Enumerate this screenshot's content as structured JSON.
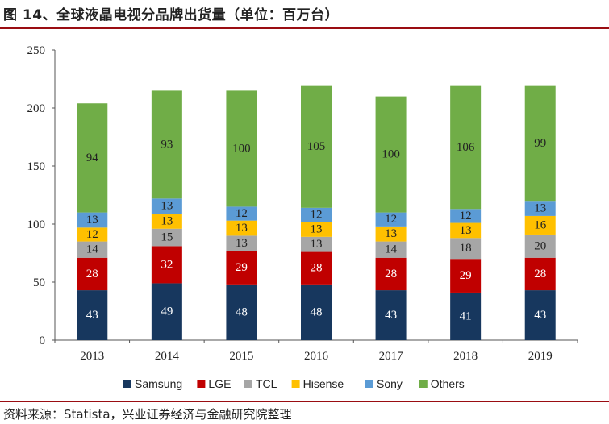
{
  "figure": {
    "title": "图 14、全球液晶电视分品牌出货量（单位：百万台）",
    "source": "资料来源：Statista，兴业证券经济与金融研究院整理"
  },
  "chart_data": {
    "type": "bar",
    "stacked": true,
    "title": "",
    "xlabel": "",
    "ylabel": "",
    "categories": [
      "2013",
      "2014",
      "2015",
      "2016",
      "2017",
      "2018",
      "2019"
    ],
    "ylim": [
      0,
      250
    ],
    "yticks": [
      0,
      50,
      100,
      150,
      200,
      250
    ],
    "legend_position": "bottom",
    "series": [
      {
        "name": "Samsung",
        "color": "#17375e",
        "label_color": "#ffffff",
        "values": [
          43,
          49,
          48,
          48,
          43,
          41,
          43
        ]
      },
      {
        "name": "LGE",
        "color": "#c00000",
        "label_color": "#ffffff",
        "values": [
          28,
          32,
          29,
          28,
          28,
          29,
          28
        ]
      },
      {
        "name": "TCL",
        "color": "#a6a6a6",
        "label_color": "#222222",
        "values": [
          14,
          15,
          13,
          13,
          14,
          18,
          20
        ]
      },
      {
        "name": "Hisense",
        "color": "#ffc000",
        "label_color": "#222222",
        "values": [
          12,
          13,
          13,
          13,
          13,
          13,
          16
        ]
      },
      {
        "name": "Sony",
        "color": "#5b9bd5",
        "label_color": "#222222",
        "values": [
          13,
          13,
          12,
          12,
          12,
          12,
          13
        ]
      },
      {
        "name": "Others",
        "color": "#70ad47",
        "label_color": "#222222",
        "values": [
          94,
          93,
          100,
          105,
          100,
          106,
          99
        ]
      }
    ]
  }
}
